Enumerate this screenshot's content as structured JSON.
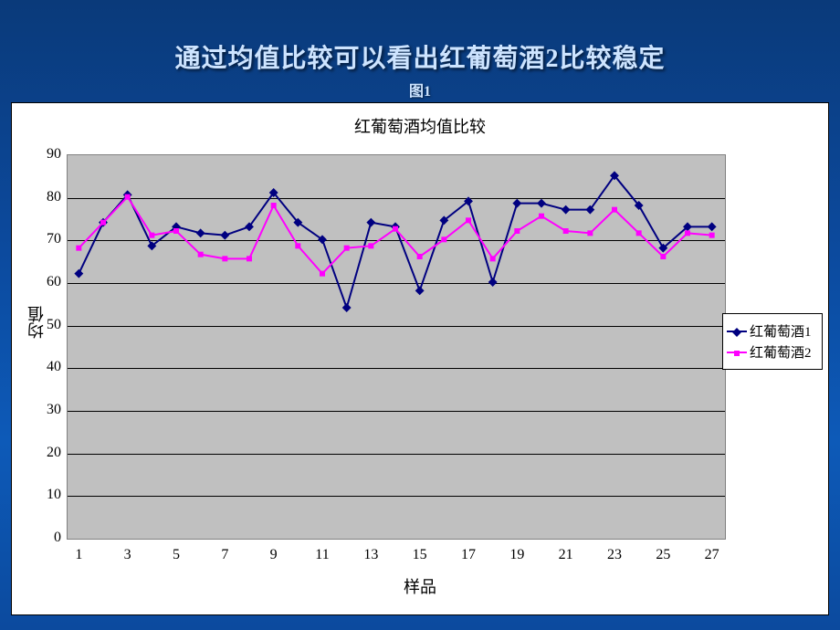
{
  "slide": {
    "title": "通过均值比较可以看出红葡萄酒2比较稳定",
    "subtitle": "图1",
    "background_gradient": [
      "#0a3a7a",
      "#0c4a9e",
      "#0d5ab8"
    ]
  },
  "chart": {
    "type": "line",
    "title": "红葡萄酒均值比较",
    "title_fontsize": 18,
    "xlabel": "样品",
    "ylabel": "均值",
    "label_fontsize": 18,
    "tick_fontsize": 16,
    "background_color": "#ffffff",
    "plot_background": "#c0c0c0",
    "grid_color": "#000000",
    "border_color": "#808080",
    "xlim": [
      0.5,
      27.5
    ],
    "ylim": [
      0,
      90
    ],
    "ytick_step": 10,
    "yticks": [
      0,
      10,
      20,
      30,
      40,
      50,
      60,
      70,
      80,
      90
    ],
    "xticks": [
      1,
      3,
      5,
      7,
      9,
      11,
      13,
      15,
      17,
      19,
      21,
      23,
      25,
      27
    ],
    "x_values": [
      1,
      2,
      3,
      4,
      5,
      6,
      7,
      8,
      9,
      10,
      11,
      12,
      13,
      14,
      15,
      16,
      17,
      18,
      19,
      20,
      21,
      22,
      23,
      24,
      25,
      26,
      27
    ],
    "series": [
      {
        "name": "红葡萄酒1",
        "color": "#000080",
        "marker": "diamond",
        "marker_size": 7,
        "line_width": 2,
        "values": [
          62,
          74,
          80.5,
          68.5,
          73,
          71.5,
          71,
          73,
          81,
          74,
          70,
          54,
          74,
          73,
          58,
          74.5,
          79,
          60,
          78.5,
          78.5,
          77,
          77,
          85,
          78,
          68,
          73,
          73
        ]
      },
      {
        "name": "红葡萄酒2",
        "color": "#ff00ff",
        "marker": "square",
        "marker_size": 6,
        "line_width": 2,
        "values": [
          68,
          74,
          80,
          71,
          72,
          66.5,
          65.5,
          65.5,
          78,
          68.5,
          62,
          68,
          68.5,
          72.5,
          66,
          70,
          74.5,
          65.5,
          72,
          75.5,
          72,
          71.5,
          77,
          71.5,
          66,
          71.5,
          71
        ]
      }
    ],
    "legend": {
      "position": "right",
      "border_color": "#000000",
      "background": "#ffffff",
      "fontsize": 15
    }
  }
}
